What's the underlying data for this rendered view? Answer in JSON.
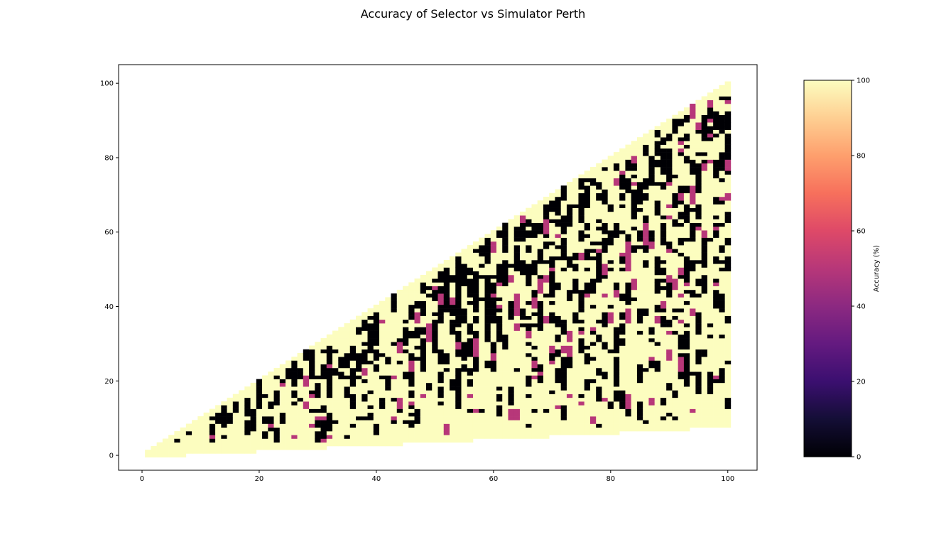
{
  "figure": {
    "title": "Accuracy of Selector vs Simulator Perth"
  },
  "chart_data": {
    "type": "heatmap",
    "title": "Accuracy of Selector vs Simulator Perth",
    "xlabel": "",
    "ylabel": "",
    "xlim": [
      -4,
      105
    ],
    "ylim": [
      -4,
      105
    ],
    "x_ticks": [
      0,
      20,
      40,
      60,
      80,
      100
    ],
    "y_ticks": [
      0,
      20,
      40,
      60,
      80,
      100
    ],
    "grid": false,
    "colormap": "magma",
    "colorbar": {
      "label": "Accuracy (%)",
      "range": [
        0,
        100
      ],
      "ticks": [
        0,
        20,
        40,
        60,
        80,
        100
      ]
    },
    "region": {
      "description_shape": "triangle",
      "x_range": [
        1,
        100
      ],
      "y_lower_at_x_min": 0,
      "y_lower_at_x_max": 8,
      "y_upper_at_x_min": 1,
      "y_upper_at_x_max": 100
    },
    "value_levels": [
      0,
      50,
      100
    ],
    "approximate_fraction_black": 0.35,
    "approximate_fraction_purple": 0.04,
    "approximate_fraction_pale": 0.61
  }
}
